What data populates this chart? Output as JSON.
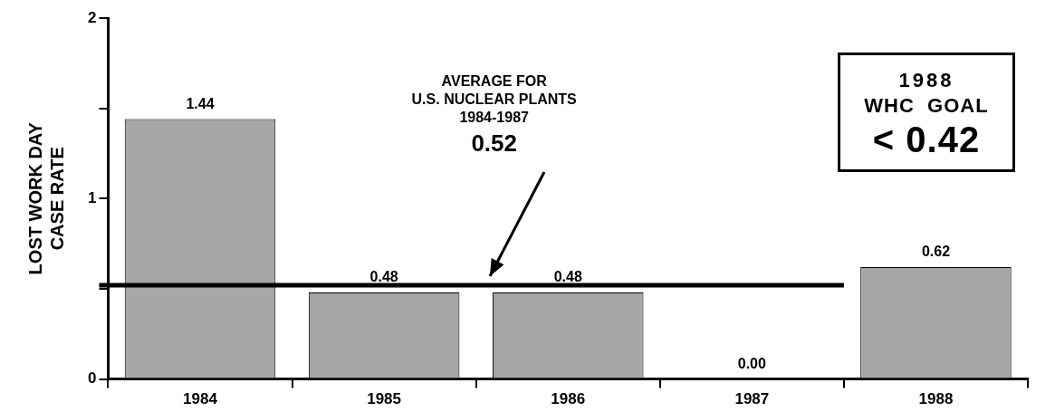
{
  "chart_data": {
    "type": "bar",
    "ylabel": "LOST WORK DAY\nCASE RATE",
    "categories": [
      "1984",
      "1985",
      "1986",
      "1987",
      "1988"
    ],
    "values": [
      1.44,
      0.48,
      0.48,
      0,
      0.62
    ],
    "color": "#a6a6a6",
    "value_labels": [
      "1.44",
      "0.48",
      "0.48",
      "0.00",
      "0.62"
    ],
    "ylim": [
      0,
      2
    ],
    "yticks": [
      0,
      {
        "value": 0.5,
        "label": null
      },
      1,
      {
        "value": 1.5,
        "label": null
      },
      2
    ],
    "ref_lines": [
      {
        "axis": "y",
        "value": 0.52,
        "label": "AVERAGE FOR\nU.S. NUCLEAR PLANTS\n1984-1987\n0.52",
        "color": "#000000"
      }
    ],
    "annotations": [
      "1988\nWHC  GOAL\n< 0.42"
    ],
    "grid": false,
    "legend": false
  }
}
